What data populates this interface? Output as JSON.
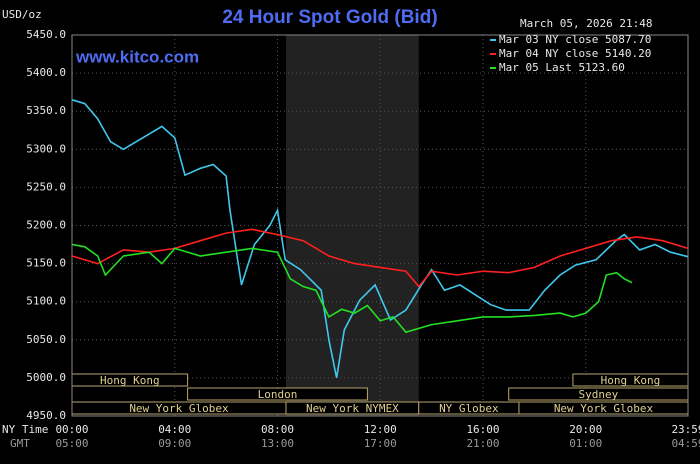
{
  "chart_data": {
    "type": "line",
    "title": "24 Hour Spot Gold (Bid)",
    "unit_label": "USD/oz",
    "timestamp": "March 05, 2026 21:48",
    "site": "www.kitco.com",
    "x_axis_labels": [
      "NY Time",
      "GMT"
    ],
    "xlim": [
      0,
      23.98
    ],
    "xticks": [
      {
        "value": 0,
        "label": "00:00"
      },
      {
        "value": 4,
        "label": "04:00"
      },
      {
        "value": 8,
        "label": "08:00"
      },
      {
        "value": 12,
        "label": "12:00"
      },
      {
        "value": 16,
        "label": "16:00"
      },
      {
        "value": 20,
        "label": "20:00"
      },
      {
        "value": 23.98,
        "label": "23:59"
      }
    ],
    "gmt_labels": [
      "05:00",
      "09:00",
      "13:00",
      "17:00",
      "21:00",
      "01:00",
      "04:59"
    ],
    "ylim": [
      4950,
      5450
    ],
    "yticks": [
      {
        "value": 4950,
        "label": "4950.0"
      },
      {
        "value": 5000,
        "label": "5000.0"
      },
      {
        "value": 5050,
        "label": "5050.0"
      },
      {
        "value": 5100,
        "label": "5100.0"
      },
      {
        "value": 5150,
        "label": "5150.0"
      },
      {
        "value": 5200,
        "label": "5200.0"
      },
      {
        "value": 5250,
        "label": "5250.0"
      },
      {
        "value": 5300,
        "label": "5300.0"
      },
      {
        "value": 5350,
        "label": "5350.0"
      },
      {
        "value": 5400,
        "label": "5400.0"
      },
      {
        "value": 5450,
        "label": "5450.0"
      }
    ],
    "grid": true,
    "shaded": [
      8.33,
      13.5
    ],
    "sessions": [
      [
        {
          "name": "Hong Kong",
          "start": 0,
          "end": 4.5
        },
        {
          "name": "Hong Kong",
          "start": 19.5,
          "end": 23.98
        }
      ],
      [
        {
          "name": "London",
          "start": 4.5,
          "end": 11.5
        },
        {
          "name": "Sydney",
          "start": 17.0,
          "end": 23.98
        }
      ],
      [
        {
          "name": "New York Globex",
          "start": 0,
          "end": 8.33
        },
        {
          "name": "New York NYMEX",
          "start": 8.33,
          "end": 13.5
        },
        {
          "name": "NY Globex",
          "start": 13.5,
          "end": 17.4
        },
        {
          "name": "New York Globex",
          "start": 17.4,
          "end": 23.98
        }
      ]
    ],
    "series": [
      {
        "name": "Mar 03 NY close 5087.70",
        "color": "#3fc8ee",
        "x": [
          0,
          0.5,
          1,
          1.5,
          2,
          2.5,
          3,
          3.5,
          4,
          4.4,
          5,
          5.5,
          6,
          6.15,
          6.6,
          7.1,
          7.7,
          8,
          8.3,
          8.9,
          9.7,
          10,
          10.3,
          10.6,
          11.2,
          11.8,
          12.4,
          13,
          13.6,
          14,
          14.5,
          15.1,
          15.7,
          16.3,
          16.9,
          17.8,
          18.4,
          19,
          19.6,
          20.4,
          21.2,
          21.5,
          22.1,
          22.7,
          23.3,
          23.98
        ],
        "values": [
          5365,
          5360,
          5340,
          5310,
          5300,
          5310,
          5320,
          5330,
          5315,
          5266,
          5275,
          5280,
          5265,
          5220,
          5122,
          5175,
          5200,
          5220,
          5155,
          5142,
          5115,
          5050,
          5000,
          5063,
          5102,
          5122,
          5076,
          5089,
          5122,
          5142,
          5115,
          5122,
          5109,
          5096,
          5089,
          5089,
          5115,
          5135,
          5148,
          5155,
          5181,
          5188,
          5168,
          5175,
          5165,
          5159
        ]
      },
      {
        "name": "Mar 04 NY close 5140.20",
        "color": "#ff2020",
        "x": [
          0,
          1,
          2,
          3,
          4,
          5,
          6,
          7,
          8,
          9,
          10,
          11,
          12,
          13,
          13.5,
          14,
          15,
          16,
          17,
          18,
          19,
          20,
          21,
          22,
          23,
          23.98
        ],
        "values": [
          5160,
          5150,
          5168,
          5165,
          5170,
          5180,
          5190,
          5195,
          5188,
          5180,
          5160,
          5150,
          5145,
          5140,
          5120,
          5140,
          5135,
          5140,
          5138,
          5145,
          5160,
          5170,
          5180,
          5185,
          5180,
          5170
        ]
      },
      {
        "name": "Mar 05 Last 5123.60",
        "color": "#22e022",
        "x": [
          0,
          0.5,
          1,
          1.3,
          2,
          3,
          3.5,
          4,
          5,
          6,
          7,
          8,
          8.5,
          9,
          9.5,
          10,
          10.5,
          11,
          11.5,
          12,
          12.5,
          13,
          14,
          15,
          16,
          17,
          18,
          19,
          19.5,
          20,
          20.5,
          20.8,
          21.2,
          21.5,
          21.8
        ],
        "values": [
          5175,
          5172,
          5160,
          5135,
          5160,
          5165,
          5150,
          5170,
          5160,
          5165,
          5170,
          5165,
          5130,
          5120,
          5115,
          5080,
          5090,
          5085,
          5095,
          5075,
          5080,
          5060,
          5070,
          5075,
          5080,
          5080,
          5082,
          5085,
          5080,
          5085,
          5100,
          5135,
          5138,
          5130,
          5125
        ]
      }
    ]
  }
}
